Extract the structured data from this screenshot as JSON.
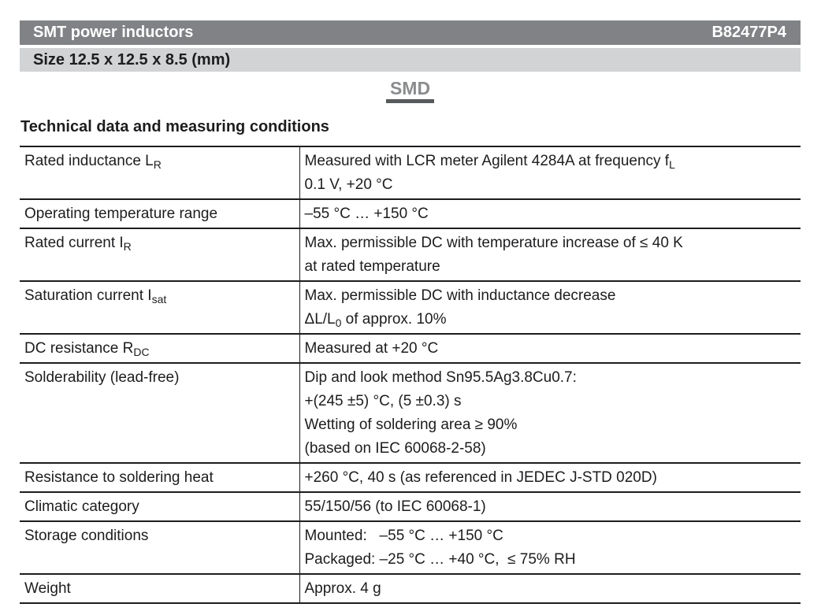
{
  "page": {
    "header": {
      "title": "SMT power inductors",
      "part_number": "B82477P4"
    },
    "size_bar": "Size 12.5 x 12.5 x 8.5 (mm)",
    "smd_label": "SMD",
    "section_title": "Technical data and measuring conditions"
  },
  "colors": {
    "header_bg": "#808285",
    "header_text": "#ffffff",
    "size_bar_bg": "#d1d3d4",
    "text": "#1d1d1f",
    "smd_text": "#8a8c8e",
    "smd_underline": "#58595b",
    "rule": "#1d1d1f"
  },
  "table": {
    "rows": [
      {
        "label": [
          {
            "t": "Rated inductance L"
          },
          {
            "t": "R",
            "sub": true
          }
        ],
        "value_lines": [
          [
            {
              "t": "Measured with LCR meter Agilent 4284A at frequency f"
            },
            {
              "t": "L",
              "sub": true
            }
          ],
          [
            {
              "t": "0.1 V, +20 °C"
            }
          ]
        ]
      },
      {
        "label": [
          {
            "t": "Operating temperature range"
          }
        ],
        "value_lines": [
          [
            {
              "t": "–55 °C … +150 °C"
            }
          ]
        ]
      },
      {
        "label": [
          {
            "t": "Rated current I"
          },
          {
            "t": "R",
            "sub": true
          }
        ],
        "value_lines": [
          [
            {
              "t": "Max. permissible DC with temperature increase of ≤ 40 K"
            }
          ],
          [
            {
              "t": "at rated temperature"
            }
          ]
        ]
      },
      {
        "label": [
          {
            "t": "Saturation current I"
          },
          {
            "t": "sat",
            "sub": true
          }
        ],
        "value_lines": [
          [
            {
              "t": "Max. permissible DC with inductance decrease"
            }
          ],
          [
            {
              "t": "ΔL/L"
            },
            {
              "t": "0",
              "sub": true
            },
            {
              "t": " of approx. 10%"
            }
          ]
        ]
      },
      {
        "label": [
          {
            "t": "DC resistance R"
          },
          {
            "t": "DC",
            "sub": true
          }
        ],
        "value_lines": [
          [
            {
              "t": "Measured at +20 °C"
            }
          ]
        ]
      },
      {
        "label": [
          {
            "t": "Solderability (lead-free)"
          }
        ],
        "value_lines": [
          [
            {
              "t": "Dip and look method Sn95.5Ag3.8Cu0.7:"
            }
          ],
          [
            {
              "t": "+(245 ±5) °C, (5 ±0.3) s"
            }
          ],
          [
            {
              "t": "Wetting of soldering area ≥ 90%"
            }
          ],
          [
            {
              "t": "(based on IEC 60068-2-58)"
            }
          ]
        ]
      },
      {
        "label": [
          {
            "t": "Resistance to soldering heat"
          }
        ],
        "value_lines": [
          [
            {
              "t": "+260 °C, 40 s (as referenced in JEDEC J-STD 020D)"
            }
          ]
        ]
      },
      {
        "label": [
          {
            "t": "Climatic category"
          }
        ],
        "value_lines": [
          [
            {
              "t": "55/150/56 (to IEC 60068-1)"
            }
          ]
        ]
      },
      {
        "label": [
          {
            "t": "Storage conditions"
          }
        ],
        "value_lines": [
          [
            {
              "t": "Mounted:   –55 °C … +150 °C"
            }
          ],
          [
            {
              "t": "Packaged: –25 °C … +40 °C,  ≤ 75% RH"
            }
          ]
        ]
      },
      {
        "label": [
          {
            "t": "Weight"
          }
        ],
        "value_lines": [
          [
            {
              "t": "Approx. 4 g"
            }
          ]
        ]
      }
    ]
  }
}
